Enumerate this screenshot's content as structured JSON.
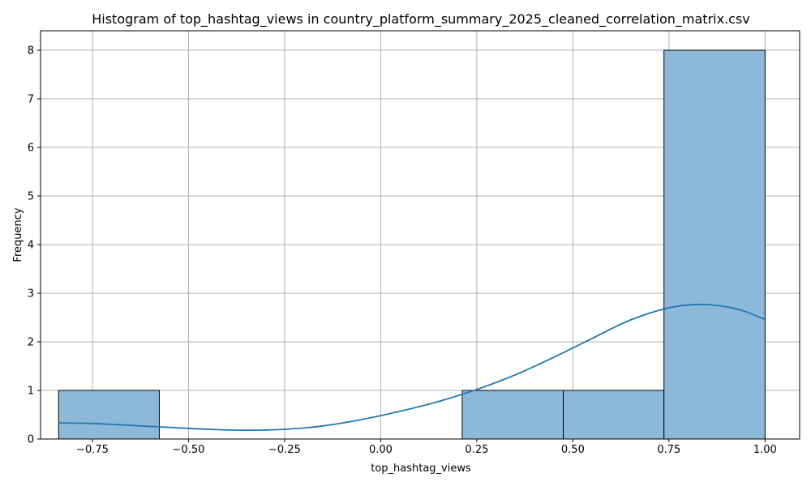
{
  "chart_data": {
    "type": "bar",
    "title": "Histogram of top_hashtag_views in country_platform_summary_2025_cleaned_correlation_matrix.csv",
    "xlabel": "top_hashtag_views",
    "ylabel": "Frequency",
    "xlim": [
      -0.885,
      1.09
    ],
    "ylim": [
      0,
      8.4
    ],
    "grid": true,
    "x_ticks": [
      -0.75,
      -0.5,
      -0.25,
      0.0,
      0.25,
      0.5,
      0.75,
      1.0
    ],
    "x_tick_labels": [
      "−0.75",
      "−0.50",
      "−0.25",
      "0.00",
      "0.25",
      "0.50",
      "0.75",
      "1.00"
    ],
    "y_ticks": [
      0,
      1,
      2,
      3,
      4,
      5,
      6,
      7,
      8
    ],
    "y_tick_labels": [
      "0",
      "1",
      "2",
      "3",
      "4",
      "5",
      "6",
      "7",
      "8"
    ],
    "bins": [
      {
        "start": -0.838,
        "end": -0.576,
        "count": 1
      },
      {
        "start": -0.576,
        "end": -0.313,
        "count": 0
      },
      {
        "start": -0.313,
        "end": -0.051,
        "count": 0
      },
      {
        "start": -0.051,
        "end": 0.212,
        "count": 0
      },
      {
        "start": 0.212,
        "end": 0.475,
        "count": 1
      },
      {
        "start": 0.475,
        "end": 0.737,
        "count": 1
      },
      {
        "start": 0.737,
        "end": 1.0,
        "count": 8
      }
    ],
    "kde": {
      "x": [
        -0.838,
        -0.75,
        -0.65,
        -0.55,
        -0.45,
        -0.35,
        -0.25,
        -0.15,
        -0.05,
        0.05,
        0.15,
        0.25,
        0.35,
        0.45,
        0.55,
        0.65,
        0.75,
        0.83,
        0.9,
        0.95,
        1.0
      ],
      "y": [
        0.33,
        0.32,
        0.28,
        0.24,
        0.2,
        0.18,
        0.2,
        0.27,
        0.4,
        0.57,
        0.77,
        1.02,
        1.32,
        1.68,
        2.07,
        2.45,
        2.7,
        2.77,
        2.72,
        2.62,
        2.46
      ]
    },
    "colors": {
      "bar_fill": "#8cb8d9",
      "bar_edge": "#000000",
      "kde_line": "#1f77b4",
      "grid": "#b0b0b0"
    }
  }
}
